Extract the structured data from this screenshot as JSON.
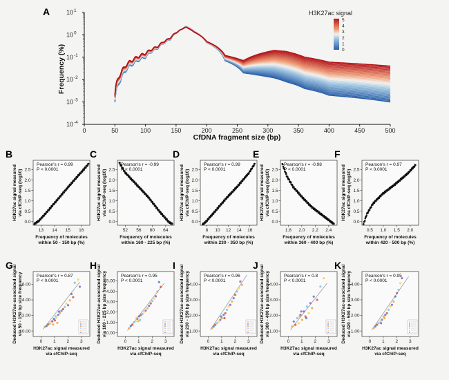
{
  "colors": {
    "low": "#2b5fa8",
    "mid": "#f3f1ee",
    "high": "#b3161b",
    "dot": "#111111",
    "fit": "#9a9a9a",
    "scatter_palette": [
      "#f0a63a",
      "#4a7bd0",
      "#d9503f",
      "#7ec3e0",
      "#f2d25a",
      "#8a63c9"
    ]
  },
  "panelA": {
    "letter": "A",
    "ylabel": "Frequency (%)",
    "xlabel": "CfDNA  fragment size (bp)",
    "x_ticks": [
      "0",
      "50",
      "100",
      "150",
      "200",
      "250",
      "300",
      "350",
      "400",
      "450",
      "500"
    ],
    "y_ticks": [
      "10",
      "10",
      "10",
      "10",
      "10",
      "10"
    ],
    "y_exps": [
      "1",
      "0",
      "-1",
      "-2",
      "-3",
      "-4"
    ],
    "legend_title": "H3K27ac signal",
    "legend_ticks": [
      "5",
      "4",
      "3",
      "2",
      "1",
      "0"
    ]
  },
  "chart_data": [
    {
      "type": "line",
      "title": "",
      "xlabel": "CfDNA  fragment size (bp)",
      "ylabel": "Frequency (%)",
      "xlim": [
        0,
        500
      ],
      "ylim": [
        0.0001,
        10
      ],
      "y_scale": "log",
      "colorbar": {
        "label": "H3K27ac signal",
        "range": [
          0,
          5
        ]
      },
      "series": [
        {
          "x": [
            50,
            60,
            80,
            100,
            120,
            140,
            160,
            166,
            180,
            200,
            230,
            260,
            290,
            310,
            330,
            360,
            400,
            450,
            500
          ],
          "y": [
            0.002,
            0.02,
            0.08,
            0.15,
            0.3,
            0.7,
            1.8,
            2.2,
            1.3,
            0.5,
            0.12,
            0.07,
            0.15,
            0.2,
            0.18,
            0.1,
            0.06,
            0.05,
            0.04
          ]
        },
        {
          "x": [
            50,
            60,
            80,
            100,
            120,
            140,
            160,
            166,
            180,
            200,
            230,
            260,
            290,
            310,
            330,
            360,
            400,
            450,
            500
          ],
          "y": [
            0.001,
            0.01,
            0.05,
            0.1,
            0.25,
            0.6,
            1.8,
            2.4,
            1.4,
            0.45,
            0.07,
            0.02,
            0.015,
            0.012,
            0.008,
            0.004,
            0.002,
            0.0015,
            0.001
          ]
        }
      ]
    },
    {
      "type": "scatter",
      "id": "B",
      "xlabel": "Frequency of molecules\nwithin 50 - 150 bp (%)",
      "ylabel": "H3K27ac signal measured\nvia cfChIP-seq (log10)",
      "stat": [
        "Pearson's r = 0.99",
        "P < 0.0001"
      ],
      "x_ticks": [
        "13",
        "14",
        "15",
        "16"
      ],
      "y_ticks": [
        "0.0",
        "0.5",
        "1.0",
        "1.5",
        "2.0",
        "2.5"
      ],
      "xlim": [
        12.3,
        16.9
      ],
      "ylim": [
        0,
        2.7
      ],
      "trend": {
        "x": [
          12.4,
          12.8,
          13.5,
          14.5,
          15.5,
          16.2,
          16.8
        ],
        "y": [
          0.05,
          0.2,
          0.6,
          1.2,
          1.8,
          2.2,
          2.55
        ]
      }
    },
    {
      "type": "scatter",
      "id": "C",
      "xlabel": "Frequency of molecules\nwithin 160 - 225 bp (%)",
      "ylabel": "H3K27ac signal measured\nvia cfChIP-seq (log10)",
      "stat": [
        "Pearson's r = -0.99",
        "P < 0.0001"
      ],
      "x_ticks": [
        "52",
        "56",
        "60",
        "64"
      ],
      "y_ticks": [
        "0.0",
        "0.5",
        "1.0",
        "1.5",
        "2.0",
        "2.5"
      ],
      "xlim": [
        51,
        66
      ],
      "ylim": [
        0,
        2.7
      ],
      "trend": {
        "x": [
          51.5,
          53,
          56,
          59,
          62,
          64.5,
          65.5
        ],
        "y": [
          2.6,
          2.2,
          1.7,
          1.2,
          0.6,
          0.15,
          0.05
        ]
      }
    },
    {
      "type": "scatter",
      "id": "D",
      "xlabel": "Frequency of molecules\nwithin 230 - 350 bp (%)",
      "ylabel": "H3K27ac signal measured\nvia cfChIP-seq (log10)",
      "stat": [
        "Pearson's r = 0.99",
        "P < 0.0001"
      ],
      "x_ticks": [
        "8",
        "10",
        "12",
        "14",
        "16"
      ],
      "y_ticks": [
        "0.0",
        "0.5",
        "1.0",
        "1.5",
        "2.0",
        "2.5"
      ],
      "xlim": [
        7,
        17
      ],
      "ylim": [
        0,
        2.7
      ],
      "trend": {
        "x": [
          7.4,
          8,
          9.5,
          11.5,
          13.5,
          15.5,
          16.6
        ],
        "y": [
          0.03,
          0.15,
          0.55,
          1.1,
          1.6,
          2.15,
          2.55
        ]
      }
    },
    {
      "type": "scatter",
      "id": "E",
      "xlabel": "Frequency of molecules\nwithin 360 - 400 bp (%)",
      "ylabel": "H3K27ac signal measured\nvia cfChIP-seq (log10)",
      "stat": [
        "Pearson's r = -0.98",
        "P < 0.0001"
      ],
      "x_ticks": [
        "1.8",
        "2.0",
        "2.2",
        "2.4"
      ],
      "y_ticks": [
        "0.0",
        "0.5",
        "1.0",
        "1.5",
        "2.0",
        "2.5"
      ],
      "xlim": [
        1.6,
        2.5
      ],
      "ylim": [
        0,
        2.7
      ],
      "trend": {
        "x": [
          1.63,
          1.7,
          1.8,
          1.95,
          2.1,
          2.3,
          2.45
        ],
        "y": [
          2.55,
          2.05,
          1.6,
          1.15,
          0.75,
          0.35,
          0.05
        ]
      }
    },
    {
      "type": "scatter",
      "id": "F",
      "xlabel": "Frequency of molecules\nwithin 420 - 500 bp (%)",
      "ylabel": "H3K27ac signal measured\nvia cfChIP-seq (log10)",
      "stat": [
        "Pearson's r = 0.97",
        "P < 0.0001"
      ],
      "x_ticks": [
        "0.5",
        "1.0",
        "1.5",
        "2.0"
      ],
      "y_ticks": [
        "0.0",
        "0.5",
        "1.0",
        "1.5",
        "2.0",
        "2.5"
      ],
      "xlim": [
        0.35,
        2.15
      ],
      "ylim": [
        0,
        2.7
      ],
      "trend": {
        "x": [
          0.4,
          0.5,
          0.7,
          1.0,
          1.4,
          1.8,
          2.05
        ],
        "y": [
          0.05,
          0.45,
          0.9,
          1.3,
          1.7,
          2.15,
          2.5
        ]
      }
    },
    {
      "type": "scatter",
      "id": "G",
      "xlabel": "H3K27ac signal measured\nvia cfChIP-seq",
      "ylabel": "Deduced H3K27ac-associated signal\nvia 50 - 150 bp size frequency",
      "stat": [
        "Pearson's r = 0.87",
        "P < 0.0001"
      ],
      "x_ticks": [
        "0",
        "1",
        "2",
        "3"
      ],
      "y_ticks": [
        "0.00",
        "2.00",
        "4.00",
        "6.00"
      ],
      "xlim": [
        -0.2,
        3.2
      ],
      "ylim": [
        -0.3,
        7.8
      ],
      "fit": [
        [
          0.4,
          0.6
        ],
        [
          2.6,
          6.5
        ]
      ],
      "points": {
        "x": [
          0.5,
          0.6,
          0.7,
          0.8,
          0.9,
          0.95,
          1.0,
          1.05,
          1.1,
          1.15,
          1.2,
          1.3,
          1.4,
          1.5,
          1.6,
          1.7,
          1.8,
          1.9,
          2.0,
          2.1,
          2.2,
          2.3,
          2.5,
          2.6,
          1.25,
          1.35
        ],
        "y": [
          0.9,
          1.0,
          1.2,
          1.3,
          1.5,
          1.6,
          1.2,
          1.9,
          1.7,
          2.2,
          2.0,
          2.4,
          2.6,
          2.9,
          3.1,
          3.4,
          3.8,
          3.6,
          4.2,
          5.0,
          4.6,
          6.4,
          6.8,
          5.9,
          1.4,
          2.8
        ]
      }
    },
    {
      "type": "scatter",
      "id": "H",
      "xlabel": "H3K27ac signal measured\nvia cfChIP-seq",
      "ylabel": "Deduced H3K27ac-associated signal\nvia 160 - 225 bp size frequency",
      "stat": [
        "Pearson's r = 0.95",
        "P < 0.0001"
      ],
      "x_ticks": [
        "0",
        "1",
        "2",
        "3"
      ],
      "y_ticks": [
        "0.00",
        "1.00",
        "2.00",
        "3.00",
        "4.00",
        "5.00"
      ],
      "xlim": [
        -0.2,
        3.2
      ],
      "ylim": [
        -0.2,
        5.3
      ],
      "fit": [
        [
          0.4,
          0.3
        ],
        [
          2.6,
          4.3
        ]
      ],
      "points": {
        "x": [
          0.5,
          0.6,
          0.7,
          0.8,
          0.9,
          1.0,
          1.05,
          1.1,
          1.2,
          1.3,
          1.4,
          1.5,
          1.6,
          1.7,
          1.8,
          1.9,
          2.0,
          2.1,
          2.2,
          2.3,
          2.4,
          1.15,
          0.95
        ],
        "y": [
          0.5,
          0.7,
          0.8,
          1.0,
          1.1,
          1.3,
          1.1,
          1.5,
          1.6,
          1.7,
          1.9,
          2.0,
          2.2,
          2.4,
          2.6,
          2.8,
          3.0,
          3.2,
          3.6,
          4.4,
          4.0,
          1.2,
          1.4
        ]
      }
    },
    {
      "type": "scatter",
      "id": "I",
      "xlabel": "H3K27ac signal measured\nvia cfChIP-seq",
      "ylabel": "Deduced H3K27ac-associated signal\nvia 230 - 350 bp size frequency",
      "stat": [
        "Pearson's r = 0.96",
        "P < 0.0001"
      ],
      "x_ticks": [
        "0",
        "1",
        "2",
        "3"
      ],
      "y_ticks": [
        "1.00",
        "2.00",
        "3.00",
        "4.00"
      ],
      "xlim": [
        -0.2,
        3.2
      ],
      "ylim": [
        0.4,
        4.3
      ],
      "fit": [
        [
          0.4,
          0.8
        ],
        [
          2.6,
          4.1
        ]
      ],
      "points": {
        "x": [
          0.5,
          0.6,
          0.7,
          0.8,
          0.9,
          1.0,
          1.1,
          1.2,
          1.3,
          1.4,
          1.5,
          1.6,
          1.7,
          1.8,
          1.9,
          2.0,
          2.1,
          2.2,
          2.3,
          1.05,
          1.25
        ],
        "y": [
          0.9,
          1.0,
          1.1,
          1.2,
          1.3,
          1.4,
          1.5,
          1.7,
          1.8,
          2.0,
          2.2,
          2.3,
          2.5,
          2.7,
          2.9,
          3.1,
          3.3,
          3.7,
          3.5,
          1.6,
          1.5
        ]
      }
    },
    {
      "type": "scatter",
      "id": "J",
      "xlabel": "H3K27ac signal measured\nvia cfChIP-seq",
      "ylabel": "Deduced H3K27ac-associated signal\nvia 360 - 400 bp size frequency",
      "stat": [
        "Pearson's r = 0.8",
        "P < 0.0001"
      ],
      "x_ticks": [
        "0",
        "1",
        "2",
        "3"
      ],
      "y_ticks": [
        "1.00",
        "2.00",
        "3.00",
        "4.00"
      ],
      "xlim": [
        -0.2,
        3.2
      ],
      "ylim": [
        0.4,
        4.3
      ],
      "fit": [
        [
          0.4,
          0.8
        ],
        [
          2.6,
          3.6
        ]
      ],
      "points": {
        "x": [
          0.5,
          0.6,
          0.7,
          0.8,
          0.9,
          1.0,
          1.1,
          1.2,
          1.3,
          1.4,
          1.5,
          1.6,
          1.7,
          1.8,
          2.0,
          2.2,
          2.4,
          1.05,
          0.95,
          1.35
        ],
        "y": [
          1.0,
          1.3,
          1.1,
          1.5,
          1.2,
          1.7,
          1.4,
          1.9,
          1.6,
          2.2,
          1.8,
          2.4,
          2.1,
          2.8,
          2.6,
          3.4,
          3.9,
          1.9,
          1.6,
          1.5
        ]
      }
    },
    {
      "type": "scatter",
      "id": "K",
      "xlabel": "H3K27ac signal measured\nvia cfChIP-seq",
      "ylabel": "Deduced H3K27ac-associated signal\nvia 420 - 500 bp size frequency",
      "stat": [
        "Pearson's r = 0.95",
        "P < 0.0001"
      ],
      "x_ticks": [
        "0",
        "1",
        "2",
        "3"
      ],
      "y_ticks": [
        "1.00",
        "2.00",
        "3.00",
        "4.00"
      ],
      "xlim": [
        -0.2,
        3.2
      ],
      "ylim": [
        0.4,
        4.3
      ],
      "fit": [
        [
          0.4,
          0.8
        ],
        [
          2.6,
          4.0
        ]
      ],
      "points": {
        "x": [
          0.5,
          0.6,
          0.7,
          0.8,
          0.9,
          1.0,
          1.1,
          1.2,
          1.3,
          1.4,
          1.5,
          1.6,
          1.7,
          1.8,
          1.9,
          2.0,
          2.1,
          2.2,
          1.15,
          0.95
        ],
        "y": [
          0.9,
          1.0,
          1.1,
          1.2,
          1.3,
          1.4,
          1.6,
          1.7,
          1.8,
          2.0,
          2.2,
          2.3,
          2.5,
          2.8,
          3.0,
          3.2,
          3.6,
          3.9,
          1.5,
          1.2
        ]
      }
    }
  ]
}
